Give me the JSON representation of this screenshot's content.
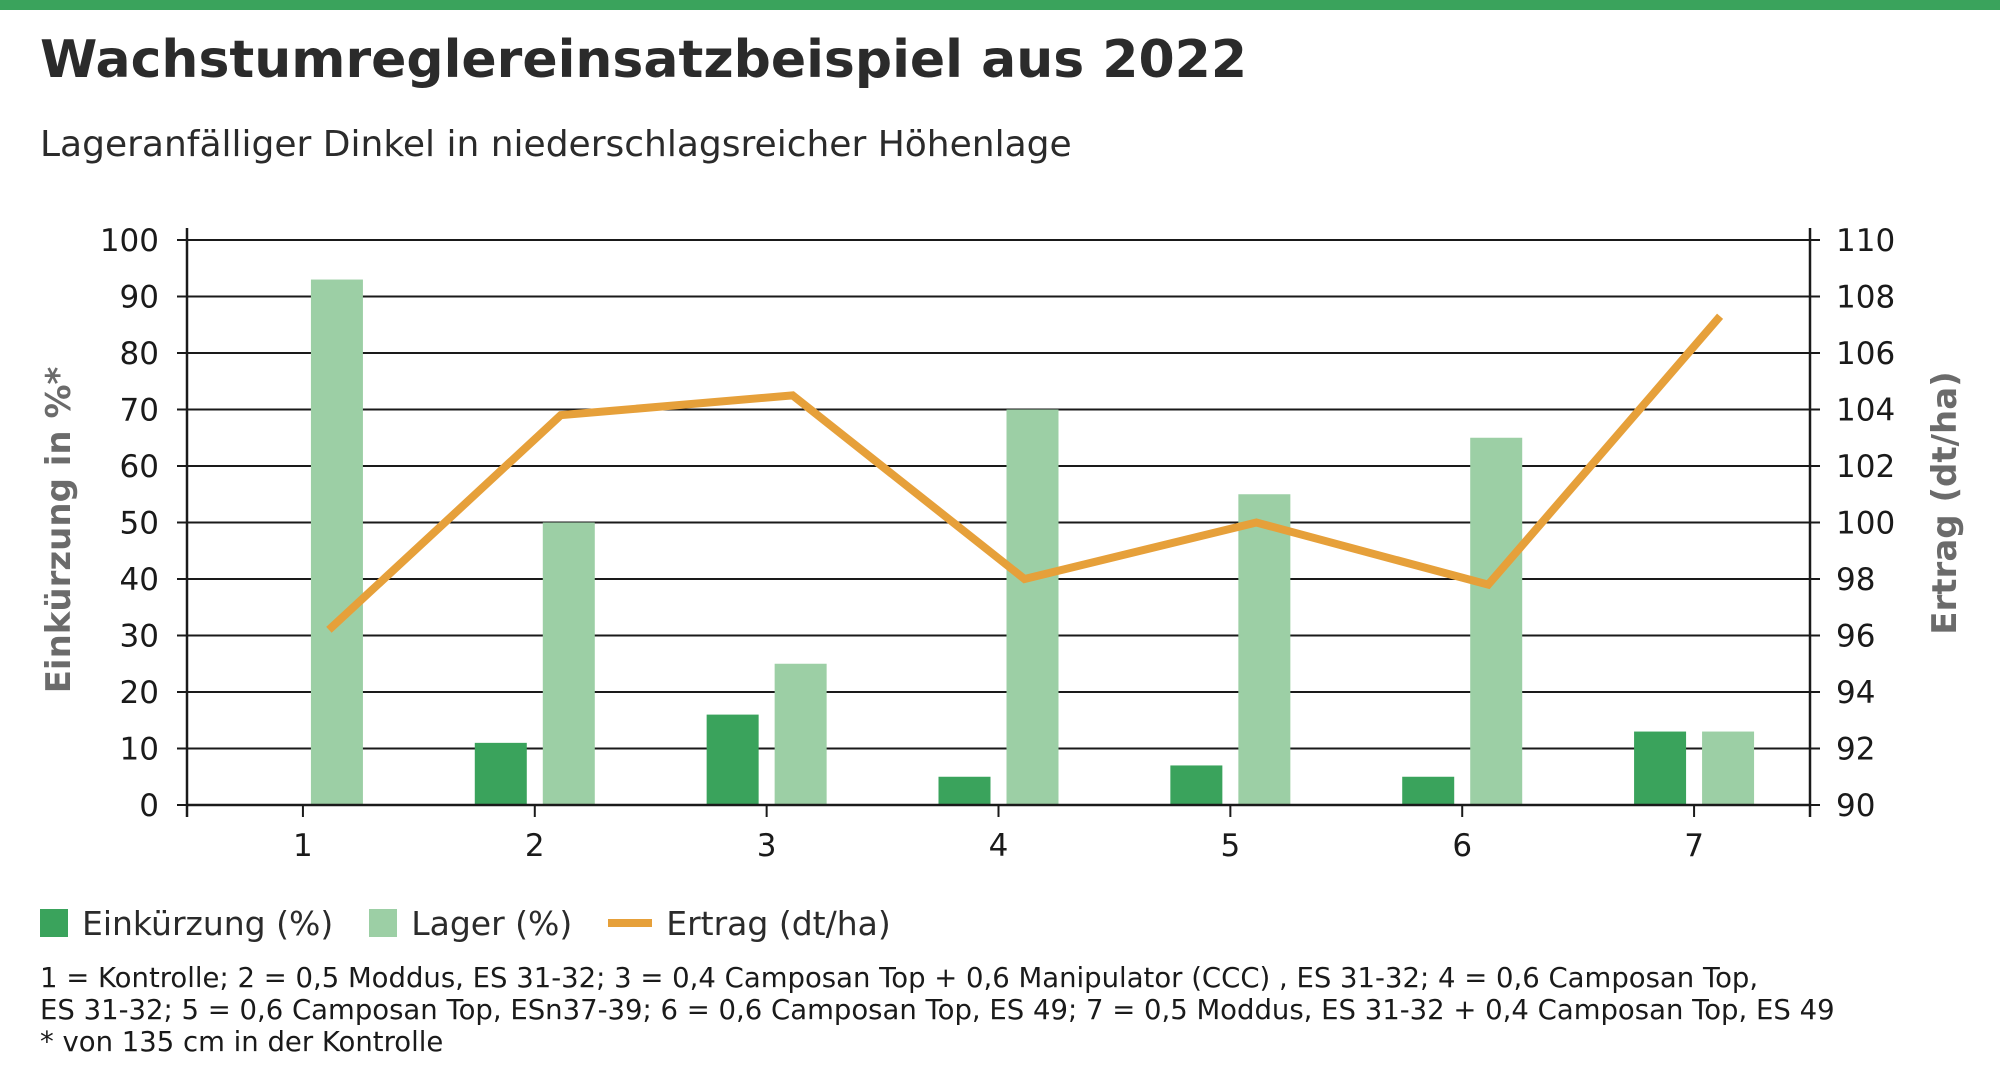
{
  "header": {
    "title": "Wachstumreglereinsatzbeispiel aus 2022",
    "subtitle": "Lageranfälliger Dinkel in niederschlagsreicher Höhenlage"
  },
  "colors": {
    "accent_bar": "#3aa35c",
    "einkuerzung": "#3aa35c",
    "lager": "#9ccfa5",
    "ertrag": "#e6a03a",
    "grid": "#1a1a1a",
    "axis_title": "#6b6b6b"
  },
  "chart_data": {
    "type": "bar",
    "categories": [
      "1",
      "2",
      "3",
      "4",
      "5",
      "6",
      "7"
    ],
    "ylabel": "Einkürzung in %*",
    "y2label": "Ertrag (dt/ha)",
    "ylim": [
      0,
      100
    ],
    "y2lim": [
      90,
      110
    ],
    "yticks": [
      "0",
      "10",
      "20",
      "30",
      "40",
      "50",
      "60",
      "70",
      "80",
      "90",
      "100"
    ],
    "y2ticks": [
      "90",
      "92",
      "94",
      "96",
      "98",
      "100",
      "102",
      "104",
      "106",
      "108",
      "110"
    ],
    "grid": true,
    "legend_position": "bottom-left",
    "series": [
      {
        "name": "Einkürzung (%)",
        "type": "bar",
        "axis": "left",
        "values": [
          0,
          11,
          16,
          5,
          7,
          5,
          13
        ]
      },
      {
        "name": "Lager (%)",
        "type": "bar",
        "axis": "left",
        "values": [
          93,
          50,
          25,
          70,
          55,
          65,
          13
        ]
      },
      {
        "name": "Ertrag (dt/ha)",
        "type": "line",
        "axis": "right",
        "values": [
          96.2,
          103.8,
          104.5,
          98.0,
          100.0,
          97.8,
          107.3
        ]
      }
    ]
  },
  "footnote": {
    "line1": "1 = Kontrolle; 2 = 0,5 Moddus, ES 31-32; 3 = 0,4 Camposan Top + 0,6 Manipulator (CCC) , ES 31-32; 4 = 0,6 Camposan Top,",
    "line2": "ES 31-32; 5 = 0,6 Camposan Top, ESn37-39; 6 = 0,6 Camposan Top, ES 49; 7 = 0,5 Moddus, ES 31-32 + 0,4 Camposan Top, ES 49",
    "line3": "* von 135 cm in der Kontrolle"
  }
}
